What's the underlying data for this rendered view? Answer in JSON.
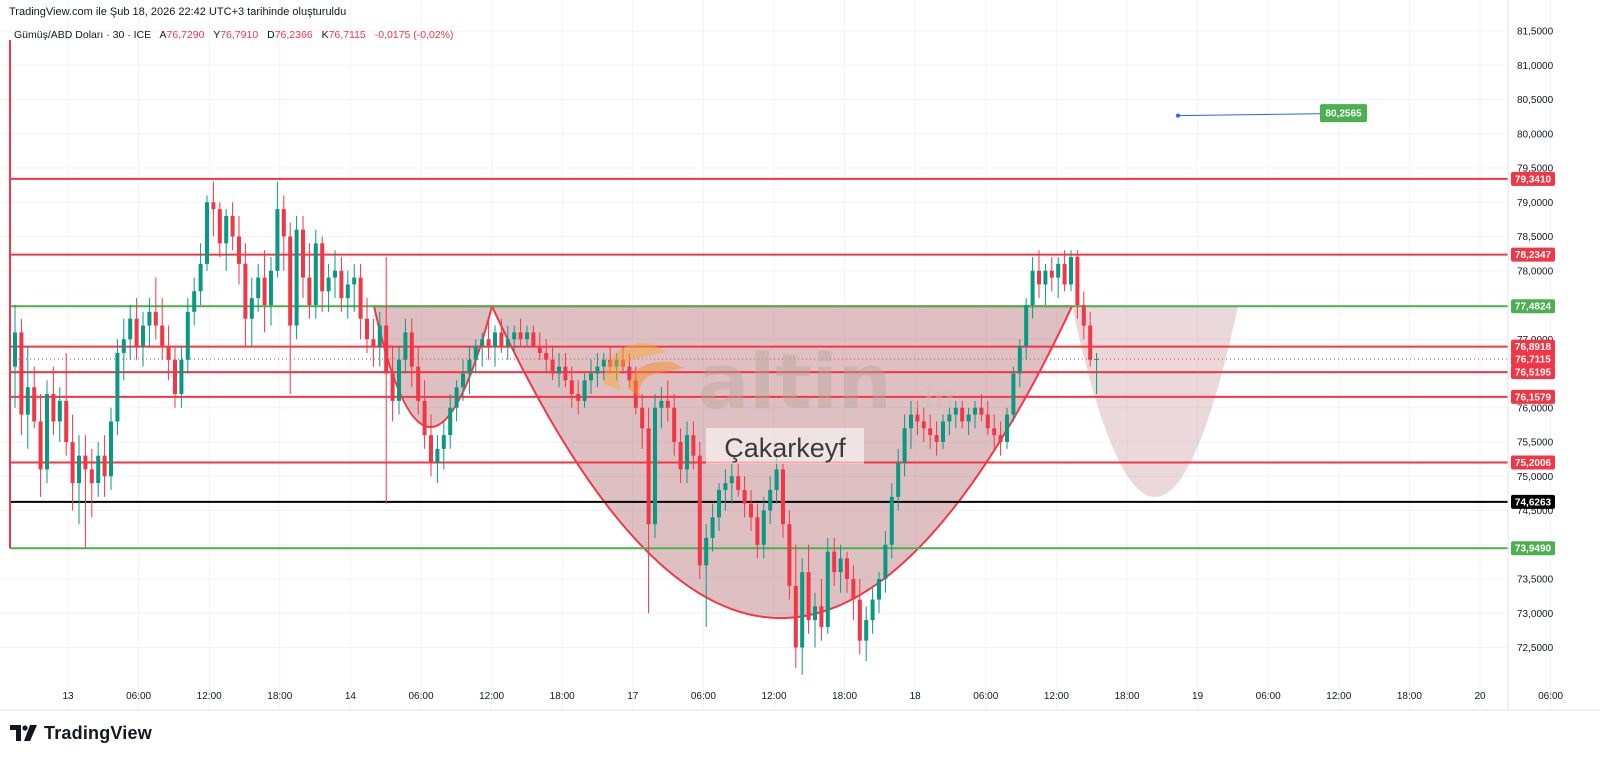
{
  "header": {
    "caption": "TradingView.com ile Şub 18, 2026 22:42 UTC+3 tarihinde oluşturuldu"
  },
  "legend": {
    "symbol": "Gümüş/ABD Doları · 30 · ICE",
    "open_label": "A",
    "open_value": "76,7290",
    "high_label": "Y",
    "high_value": "76,7910",
    "low_label": "D",
    "low_value": "76,2366",
    "close_label": "K",
    "close_value": "76,7115",
    "change": "-0,0175 (-0,02%)"
  },
  "watermark": {
    "logo_text": "altin",
    "logo_suffix": ".in",
    "caption": "Çakarkeyf"
  },
  "footer": {
    "brand": "TradingView"
  },
  "colors": {
    "up": "#089981",
    "down": "#f23645",
    "resistance": "#f23645",
    "support_green": "#4caf50",
    "key_level": "#000000",
    "pattern_fill": "#b0686f",
    "target": "#4caf50"
  },
  "chart_data": {
    "type": "candlestick",
    "symbol": "Gümüş/ABD Doları",
    "interval": "30",
    "ylim": [
      72.05,
      81.6
    ],
    "y_ticks": [
      "81,5000",
      "81,0000",
      "80,5000",
      "80,0000",
      "79,5000",
      "79,0000",
      "78,5000",
      "78,0000",
      "77,5000",
      "77,0000",
      "76,5000",
      "76,0000",
      "75,5000",
      "75,0000",
      "74,5000",
      "74,0000",
      "73,5000",
      "73,0000",
      "72,5000"
    ],
    "x_ticks": [
      "13",
      "06:00",
      "12:00",
      "18:00",
      "14",
      "06:00",
      "12:00",
      "18:00",
      "17",
      "06:00",
      "12:00",
      "18:00",
      "18",
      "06:00",
      "12:00",
      "18:00",
      "19",
      "06:00",
      "12:00",
      "18:00",
      "20",
      "06:00"
    ],
    "horizontal_levels": [
      {
        "price": 79.341,
        "label": "79,3410",
        "color": "#f23645"
      },
      {
        "price": 78.2347,
        "label": "78,2347",
        "color": "#f23645"
      },
      {
        "price": 77.4824,
        "label": "77,4824",
        "color": "#4caf50"
      },
      {
        "price": 76.8918,
        "label": "76,8918",
        "color": "#f23645"
      },
      {
        "price": 76.5195,
        "label": "76,5195",
        "color": "#f23645"
      },
      {
        "price": 76.1579,
        "label": "76,1579",
        "color": "#f23645"
      },
      {
        "price": 75.2006,
        "label": "75,2006",
        "color": "#f23645"
      },
      {
        "price": 74.6263,
        "label": "74,6263",
        "color": "#000000"
      },
      {
        "price": 73.949,
        "label": "73,9490",
        "color": "#4caf50"
      }
    ],
    "last_price": {
      "price": 76.7115,
      "label": "76,7115"
    },
    "target": {
      "price": 80.2565,
      "label": "80,2565"
    },
    "candles": [
      [
        76.6,
        77.5,
        76.0,
        77.1
      ],
      [
        77.1,
        77.3,
        75.6,
        75.9
      ],
      [
        75.9,
        76.9,
        75.4,
        76.3
      ],
      [
        76.3,
        76.6,
        75.7,
        75.8
      ],
      [
        75.8,
        76.2,
        74.7,
        75.1
      ],
      [
        75.1,
        76.4,
        74.9,
        76.2
      ],
      [
        76.2,
        76.6,
        75.6,
        75.8
      ],
      [
        75.8,
        76.3,
        75.5,
        76.1
      ],
      [
        76.1,
        76.8,
        75.3,
        75.5
      ],
      [
        75.5,
        75.9,
        74.5,
        74.9
      ],
      [
        74.9,
        75.6,
        74.3,
        75.3
      ],
      [
        75.3,
        75.6,
        73.95,
        75.1
      ],
      [
        75.1,
        75.4,
        74.4,
        74.9
      ],
      [
        74.9,
        75.5,
        74.7,
        75.3
      ],
      [
        75.3,
        75.6,
        74.7,
        75.0
      ],
      [
        75.0,
        76.0,
        74.8,
        75.8
      ],
      [
        75.8,
        77.0,
        75.6,
        76.8
      ],
      [
        76.8,
        77.3,
        76.4,
        77.0
      ],
      [
        77.0,
        77.5,
        76.7,
        77.3
      ],
      [
        77.3,
        77.6,
        76.7,
        76.9
      ],
      [
        76.9,
        77.4,
        76.6,
        77.2
      ],
      [
        77.2,
        77.6,
        76.9,
        77.4
      ],
      [
        77.4,
        77.9,
        77.0,
        77.2
      ],
      [
        77.2,
        77.6,
        76.7,
        76.9
      ],
      [
        76.9,
        77.2,
        76.4,
        76.7
      ],
      [
        76.7,
        76.9,
        76.0,
        76.2
      ],
      [
        76.2,
        76.9,
        76.0,
        76.7
      ],
      [
        76.7,
        77.6,
        76.5,
        77.4
      ],
      [
        77.4,
        77.9,
        77.2,
        77.7
      ],
      [
        77.7,
        78.4,
        77.5,
        78.1
      ],
      [
        78.1,
        79.1,
        78.0,
        79.0
      ],
      [
        79.0,
        79.3,
        78.5,
        78.9
      ],
      [
        78.9,
        79.0,
        78.2,
        78.4
      ],
      [
        78.4,
        78.9,
        78.0,
        78.8
      ],
      [
        78.8,
        79.0,
        78.3,
        78.5
      ],
      [
        78.5,
        78.8,
        77.8,
        78.1
      ],
      [
        78.1,
        78.4,
        76.9,
        77.3
      ],
      [
        77.3,
        77.9,
        76.9,
        77.6
      ],
      [
        77.6,
        78.1,
        77.4,
        77.9
      ],
      [
        77.9,
        78.3,
        77.1,
        77.5
      ],
      [
        77.5,
        78.2,
        77.2,
        78.0
      ],
      [
        78.0,
        79.3,
        77.9,
        78.9
      ],
      [
        78.9,
        79.1,
        78.0,
        78.5
      ],
      [
        78.5,
        78.7,
        76.2,
        77.2
      ],
      [
        77.2,
        78.8,
        77.0,
        78.6
      ],
      [
        78.6,
        78.8,
        77.6,
        77.9
      ],
      [
        77.9,
        78.4,
        77.3,
        77.5
      ],
      [
        77.5,
        78.6,
        77.3,
        78.4
      ],
      [
        78.4,
        78.5,
        77.4,
        77.7
      ],
      [
        77.7,
        78.1,
        77.4,
        77.9
      ],
      [
        77.9,
        78.3,
        77.6,
        78.0
      ],
      [
        78.0,
        78.2,
        77.4,
        77.6
      ],
      [
        77.6,
        78.0,
        77.3,
        77.8
      ],
      [
        77.8,
        78.1,
        77.4,
        77.9
      ],
      [
        77.9,
        78.1,
        77.0,
        77.3
      ],
      [
        77.3,
        77.6,
        76.8,
        77.0
      ],
      [
        77.0,
        77.3,
        76.6,
        76.9
      ],
      [
        76.9,
        77.4,
        76.6,
        77.2
      ],
      [
        77.2,
        78.2,
        74.6,
        76.5
      ],
      [
        76.5,
        76.9,
        75.8,
        76.1
      ],
      [
        76.1,
        76.9,
        75.9,
        76.7
      ],
      [
        76.7,
        77.3,
        76.5,
        77.1
      ],
      [
        77.1,
        77.3,
        76.3,
        76.6
      ],
      [
        76.6,
        76.9,
        75.9,
        76.1
      ],
      [
        76.1,
        76.4,
        75.4,
        75.6
      ],
      [
        75.6,
        75.9,
        75.0,
        75.2
      ],
      [
        75.2,
        75.6,
        74.9,
        75.4
      ],
      [
        75.4,
        75.8,
        75.1,
        75.6
      ],
      [
        75.6,
        76.2,
        75.4,
        76.0
      ],
      [
        76.0,
        76.4,
        75.8,
        76.3
      ],
      [
        76.3,
        76.7,
        76.1,
        76.5
      ],
      [
        76.5,
        76.9,
        76.2,
        76.7
      ],
      [
        76.7,
        77.0,
        76.5,
        76.9
      ],
      [
        76.9,
        77.1,
        76.6,
        77.0
      ],
      [
        77.0,
        77.3,
        76.7,
        76.9
      ],
      [
        76.9,
        77.2,
        76.6,
        77.1
      ],
      [
        77.1,
        77.3,
        76.8,
        76.9
      ],
      [
        76.9,
        77.2,
        76.7,
        77.0
      ],
      [
        77.0,
        77.2,
        76.8,
        77.1
      ],
      [
        77.1,
        77.3,
        76.9,
        77.0
      ],
      [
        77.0,
        77.2,
        76.9,
        77.1
      ],
      [
        77.1,
        77.2,
        76.9,
        76.9
      ],
      [
        76.9,
        77.1,
        76.7,
        76.8
      ],
      [
        76.8,
        77.0,
        76.5,
        76.7
      ],
      [
        76.7,
        76.9,
        76.4,
        76.5
      ],
      [
        76.5,
        76.8,
        76.3,
        76.6
      ],
      [
        76.6,
        76.8,
        76.3,
        76.4
      ],
      [
        76.4,
        76.6,
        76.0,
        76.2
      ],
      [
        76.2,
        76.4,
        75.9,
        76.1
      ],
      [
        76.1,
        76.5,
        76.0,
        76.4
      ],
      [
        76.4,
        76.7,
        76.2,
        76.5
      ],
      [
        76.5,
        76.8,
        76.3,
        76.6
      ],
      [
        76.6,
        76.8,
        76.4,
        76.7
      ],
      [
        76.7,
        76.9,
        76.5,
        76.6
      ],
      [
        76.6,
        76.8,
        76.4,
        76.7
      ],
      [
        76.7,
        76.9,
        76.5,
        76.6
      ],
      [
        76.6,
        76.8,
        76.3,
        76.4
      ],
      [
        76.4,
        76.6,
        75.9,
        76.0
      ],
      [
        76.0,
        76.2,
        75.4,
        75.7
      ],
      [
        75.7,
        76.0,
        73.0,
        74.3
      ],
      [
        74.3,
        76.2,
        74.1,
        76.0
      ],
      [
        76.0,
        76.3,
        75.7,
        76.1
      ],
      [
        76.1,
        76.4,
        75.8,
        76.0
      ],
      [
        76.0,
        76.2,
        75.3,
        75.5
      ],
      [
        75.5,
        75.7,
        74.9,
        75.1
      ],
      [
        75.1,
        75.8,
        74.9,
        75.6
      ],
      [
        75.6,
        75.8,
        75.1,
        75.3
      ],
      [
        75.3,
        75.5,
        73.5,
        73.7
      ],
      [
        73.7,
        74.3,
        72.8,
        74.1
      ],
      [
        74.1,
        74.6,
        73.9,
        74.4
      ],
      [
        74.4,
        74.9,
        74.2,
        74.8
      ],
      [
        74.8,
        75.1,
        74.5,
        74.9
      ],
      [
        74.9,
        75.2,
        74.6,
        75.0
      ],
      [
        75.0,
        75.2,
        74.7,
        74.8
      ],
      [
        74.8,
        75.0,
        74.4,
        74.6
      ],
      [
        74.6,
        74.8,
        74.2,
        74.4
      ],
      [
        74.4,
        74.6,
        73.8,
        74.0
      ],
      [
        74.0,
        74.7,
        73.8,
        74.5
      ],
      [
        74.5,
        75.0,
        74.3,
        74.8
      ],
      [
        74.8,
        75.3,
        74.6,
        75.1
      ],
      [
        75.1,
        75.2,
        74.1,
        74.3
      ],
      [
        74.3,
        74.5,
        73.2,
        73.4
      ],
      [
        73.4,
        74.0,
        72.2,
        72.5
      ],
      [
        72.5,
        73.8,
        72.1,
        73.6
      ],
      [
        73.6,
        74.0,
        72.7,
        72.9
      ],
      [
        72.9,
        73.3,
        72.5,
        73.1
      ],
      [
        73.1,
        73.5,
        72.6,
        72.8
      ],
      [
        72.8,
        74.1,
        72.7,
        73.9
      ],
      [
        73.9,
        74.1,
        73.4,
        73.6
      ],
      [
        73.6,
        74.0,
        73.3,
        73.8
      ],
      [
        73.8,
        73.9,
        73.3,
        73.5
      ],
      [
        73.5,
        73.7,
        72.9,
        73.2
      ],
      [
        73.2,
        73.5,
        72.4,
        72.6
      ],
      [
        72.6,
        73.1,
        72.3,
        72.9
      ],
      [
        72.9,
        73.4,
        72.7,
        73.2
      ],
      [
        73.2,
        73.6,
        73.0,
        73.5
      ],
      [
        73.5,
        74.2,
        73.3,
        74.0
      ],
      [
        74.0,
        74.9,
        73.8,
        74.7
      ],
      [
        74.7,
        75.4,
        74.5,
        75.2
      ],
      [
        75.2,
        75.9,
        75.0,
        75.7
      ],
      [
        75.7,
        76.1,
        75.4,
        75.9
      ],
      [
        75.9,
        76.1,
        75.6,
        75.8
      ],
      [
        75.8,
        76.0,
        75.5,
        75.7
      ],
      [
        75.7,
        75.9,
        75.4,
        75.6
      ],
      [
        75.6,
        75.8,
        75.3,
        75.5
      ],
      [
        75.5,
        75.9,
        75.4,
        75.8
      ],
      [
        75.8,
        76.0,
        75.6,
        75.9
      ],
      [
        75.9,
        76.1,
        75.7,
        76.0
      ],
      [
        76.0,
        76.1,
        75.7,
        75.8
      ],
      [
        75.8,
        76.0,
        75.6,
        75.9
      ],
      [
        75.9,
        76.1,
        75.7,
        76.0
      ],
      [
        76.0,
        76.2,
        75.8,
        75.9
      ],
      [
        75.9,
        76.1,
        75.6,
        75.7
      ],
      [
        75.7,
        75.9,
        75.4,
        75.6
      ],
      [
        75.6,
        75.8,
        75.3,
        75.5
      ],
      [
        75.5,
        76.0,
        75.4,
        75.9
      ],
      [
        75.9,
        76.6,
        75.8,
        76.5
      ],
      [
        76.5,
        77.0,
        76.3,
        76.9
      ],
      [
        76.9,
        77.6,
        76.7,
        77.5
      ],
      [
        77.5,
        78.2,
        77.3,
        78.0
      ],
      [
        78.0,
        78.3,
        77.6,
        77.8
      ],
      [
        77.8,
        78.1,
        77.5,
        78.0
      ],
      [
        78.0,
        78.2,
        77.7,
        77.9
      ],
      [
        77.9,
        78.2,
        77.6,
        78.1
      ],
      [
        78.1,
        78.3,
        77.7,
        77.8
      ],
      [
        77.8,
        78.3,
        77.7,
        78.2
      ],
      [
        78.2,
        78.3,
        77.3,
        77.5
      ],
      [
        77.5,
        77.7,
        77.0,
        77.2
      ],
      [
        77.2,
        77.4,
        76.6,
        76.7
      ],
      [
        76.7,
        76.8,
        76.2,
        76.7115
      ]
    ]
  }
}
